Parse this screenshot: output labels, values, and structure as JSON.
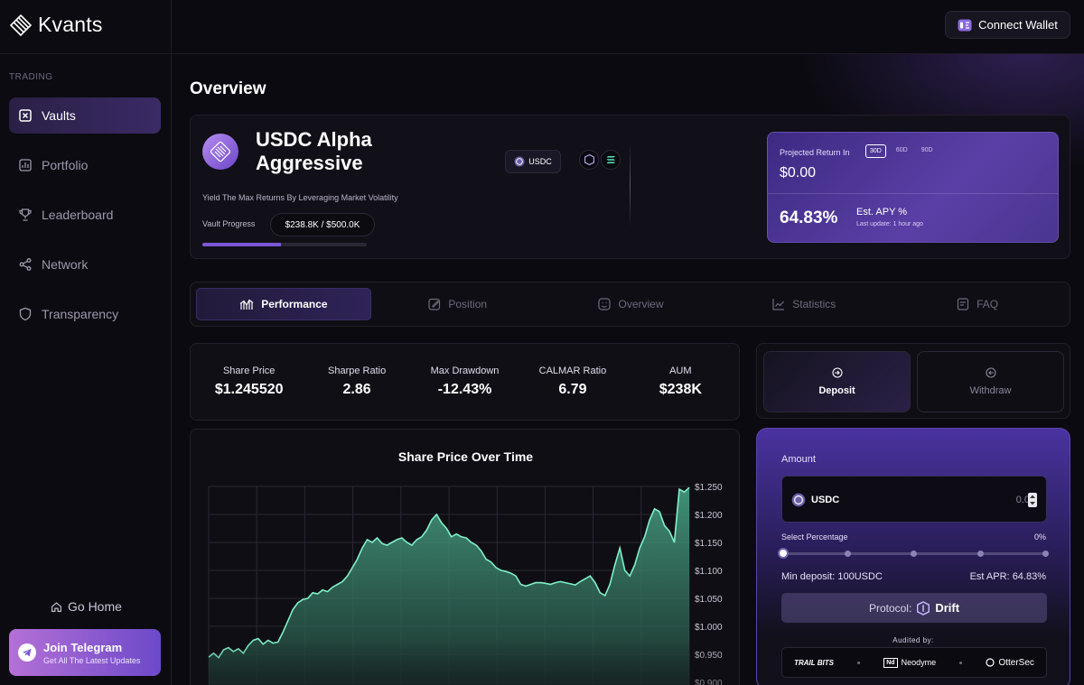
{
  "app": {
    "name": "Kvants"
  },
  "sidebar": {
    "section_label": "TRADING",
    "items": [
      {
        "label": "Vaults",
        "icon": "vault-icon",
        "active": true
      },
      {
        "label": "Portfolio",
        "icon": "portfolio-icon",
        "active": false
      },
      {
        "label": "Leaderboard",
        "icon": "trophy-icon",
        "active": false
      },
      {
        "label": "Network",
        "icon": "share-icon",
        "active": false
      },
      {
        "label": "Transparency",
        "icon": "shield-icon",
        "active": false
      }
    ],
    "go_home": "Go Home",
    "telegram": {
      "title": "Join Telegram",
      "subtitle": "Get All The Latest Updates"
    }
  },
  "header": {
    "connect_wallet": "Connect Wallet"
  },
  "page": {
    "title": "Overview"
  },
  "vault": {
    "name": "USDC Alpha Aggressive",
    "description": "Yield The Max Returns By Leveraging Market Volatility",
    "progress_label": "Vault Progress",
    "progress_text": "$238.8K / $500.0K",
    "progress_fraction": 0.4776,
    "token": "USDC"
  },
  "projection": {
    "label": "Projected Return In",
    "periods": [
      "30D",
      "60D",
      "90D"
    ],
    "selected_period": "30D",
    "value": "$0.00",
    "apy": "64.83%",
    "apy_label": "Est. APY %",
    "last_update": "Last update: 1 hour ago"
  },
  "tabs": [
    {
      "label": "Performance",
      "icon": "chart-candles-icon",
      "active": true
    },
    {
      "label": "Position",
      "icon": "edit-icon",
      "active": false
    },
    {
      "label": "Overview",
      "icon": "smile-icon",
      "active": false
    },
    {
      "label": "Statistics",
      "icon": "line-chart-icon",
      "active": false
    },
    {
      "label": "FAQ",
      "icon": "faq-icon",
      "active": false
    }
  ],
  "stats": [
    {
      "label": "Share Price",
      "value": "$1.245520"
    },
    {
      "label": "Sharpe Ratio",
      "value": "2.86"
    },
    {
      "label": "Max Drawdown",
      "value": "-12.43%"
    },
    {
      "label": "CALMAR Ratio",
      "value": "6.79"
    },
    {
      "label": "AUM",
      "value": "$238K"
    }
  ],
  "chart_data": {
    "type": "area",
    "title": "Share Price Over Time",
    "ylim": [
      0.9,
      1.25
    ],
    "y_ticks": [
      "$1.250",
      "$1.200",
      "$1.150",
      "$1.100",
      "$1.050",
      "$1.000",
      "$0.950",
      "$0.900"
    ],
    "y_tick_values": [
      1.25,
      1.2,
      1.15,
      1.1,
      1.05,
      1.0,
      0.95,
      0.9
    ],
    "values": [
      0.945,
      0.952,
      0.944,
      0.958,
      0.962,
      0.955,
      0.96,
      0.952,
      0.966,
      0.975,
      0.978,
      0.968,
      0.975,
      0.97,
      0.972,
      0.99,
      1.01,
      1.03,
      1.042,
      1.048,
      1.05,
      1.06,
      1.058,
      1.065,
      1.062,
      1.07,
      1.075,
      1.08,
      1.09,
      1.105,
      1.12,
      1.14,
      1.155,
      1.15,
      1.158,
      1.148,
      1.145,
      1.15,
      1.155,
      1.158,
      1.15,
      1.145,
      1.155,
      1.16,
      1.172,
      1.19,
      1.2,
      1.185,
      1.175,
      1.16,
      1.165,
      1.16,
      1.158,
      1.15,
      1.145,
      1.135,
      1.12,
      1.115,
      1.105,
      1.1,
      1.098,
      1.095,
      1.09,
      1.075,
      1.072,
      1.075,
      1.078,
      1.078,
      1.077,
      1.075,
      1.078,
      1.08,
      1.078,
      1.076,
      1.074,
      1.08,
      1.085,
      1.09,
      1.078,
      1.06,
      1.055,
      1.075,
      1.11,
      1.14,
      1.1,
      1.09,
      1.11,
      1.14,
      1.16,
      1.19,
      1.21,
      1.205,
      1.18,
      1.17,
      1.15,
      1.245,
      1.24,
      1.248
    ]
  },
  "deposit": {
    "deposit_label": "Deposit",
    "withdraw_label": "Withdraw",
    "amount_label": "Amount",
    "token": "USDC",
    "amount_value": "0.0",
    "select_percentage": "Select Percentage",
    "percentage": "0%",
    "percentage_fraction": 0,
    "min_deposit_label": "Min deposit:",
    "min_deposit": "100USDC",
    "est_apr_label": "Est APR:",
    "est_apr": "64.83%",
    "protocol_label": "Protocol:",
    "protocol": "Drift",
    "audited_by": "Audited by:",
    "auditors": [
      "TRAIL BITS",
      "Neodyme",
      "OtterSec"
    ]
  }
}
